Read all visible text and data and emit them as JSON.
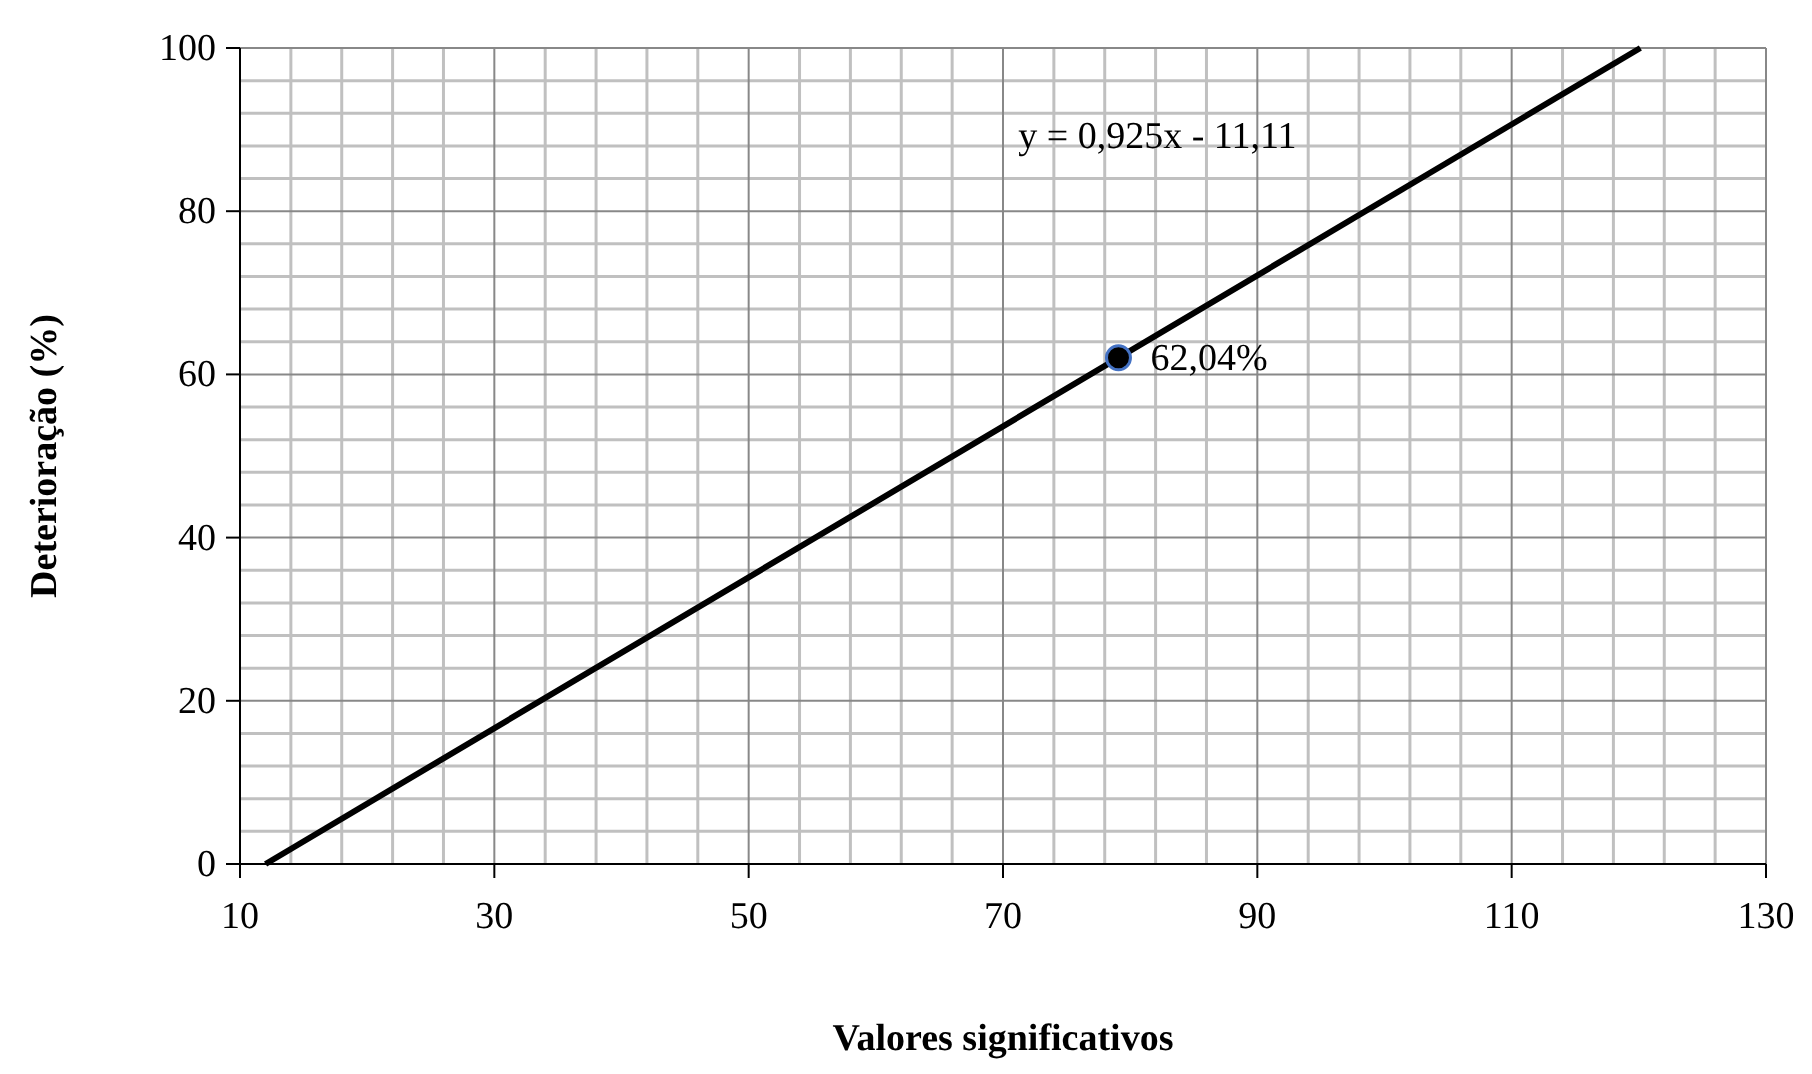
{
  "chart_data": {
    "type": "scatter",
    "xlabel": "Valores significativos",
    "ylabel": "Deterioração (%)",
    "xlim": [
      10,
      130
    ],
    "xticks": [
      10,
      30,
      50,
      70,
      90,
      110,
      130
    ],
    "ylim": [
      0,
      100
    ],
    "yticks": [
      0,
      20,
      40,
      60,
      80,
      100
    ],
    "grid": true,
    "annotations": [
      "y = 0,925x - 11,11"
    ],
    "series": [
      {
        "type": "line",
        "color": "#000000",
        "x": [
          12.01,
          120.12
        ],
        "values": [
          0,
          100
        ]
      },
      {
        "color": "#000000",
        "x": [
          79.08
        ],
        "values": [
          62.04
        ],
        "value_labels": [
          "62,04%"
        ],
        "marker": "circle"
      }
    ]
  }
}
